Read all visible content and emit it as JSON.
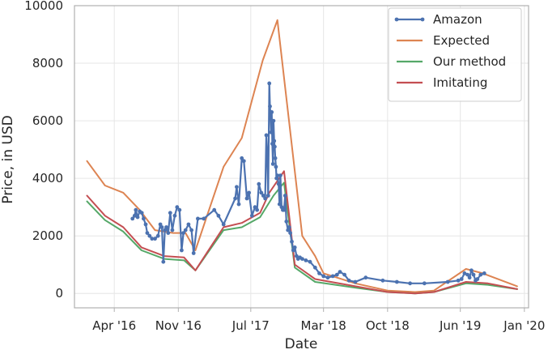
{
  "chart_data": {
    "type": "line",
    "title": "",
    "xlabel": "Date",
    "ylabel": "Price, in USD",
    "x_tick_labels": [
      "Apr '16",
      "Nov '16",
      "Jul '17",
      "Mar '18",
      "Oct '18",
      "Jun '19",
      "Jan '20"
    ],
    "x_ticks": [
      "2016-04-01",
      "2016-11-01",
      "2017-07-01",
      "2018-03-01",
      "2018-10-01",
      "2019-06-01",
      "2020-01-01"
    ],
    "y_ticks": [
      0,
      2000,
      4000,
      6000,
      8000,
      10000
    ],
    "y_tick_labels": [
      "0",
      "2000",
      "4000",
      "6000",
      "8000",
      "10000"
    ],
    "xlim": [
      "2015-11-20",
      "2020-01-15"
    ],
    "ylim": [
      -500,
      10000
    ],
    "grid": true,
    "legend_position": "top-right",
    "series": [
      {
        "name": "Amazon",
        "color": "#4c72b0",
        "marker": "circle",
        "points": [
          [
            "2016-06-01",
            2600
          ],
          [
            "2016-06-08",
            2700
          ],
          [
            "2016-06-12",
            2900
          ],
          [
            "2016-06-18",
            2650
          ],
          [
            "2016-06-25",
            2850
          ],
          [
            "2016-07-02",
            2800
          ],
          [
            "2016-07-08",
            2600
          ],
          [
            "2016-07-15",
            2400
          ],
          [
            "2016-07-20",
            2100
          ],
          [
            "2016-07-28",
            2000
          ],
          [
            "2016-08-05",
            1900
          ],
          [
            "2016-08-15",
            1900
          ],
          [
            "2016-08-25",
            2000
          ],
          [
            "2016-09-02",
            2400
          ],
          [
            "2016-09-07",
            2300
          ],
          [
            "2016-09-12",
            1100
          ],
          [
            "2016-09-17",
            2200
          ],
          [
            "2016-09-22",
            2300
          ],
          [
            "2016-09-28",
            2100
          ],
          [
            "2016-10-05",
            2800
          ],
          [
            "2016-10-12",
            2200
          ],
          [
            "2016-10-20",
            2700
          ],
          [
            "2016-10-28",
            3000
          ],
          [
            "2016-11-05",
            2900
          ],
          [
            "2016-11-12",
            1500
          ],
          [
            "2016-11-18",
            2100
          ],
          [
            "2016-11-25",
            2200
          ],
          [
            "2016-12-05",
            2400
          ],
          [
            "2016-12-15",
            2200
          ],
          [
            "2016-12-22",
            1400
          ],
          [
            "2017-01-05",
            2600
          ],
          [
            "2017-01-25",
            2600
          ],
          [
            "2017-03-01",
            2900
          ],
          [
            "2017-03-15",
            2700
          ],
          [
            "2017-04-01",
            2400
          ],
          [
            "2017-05-10",
            3300
          ],
          [
            "2017-05-15",
            3700
          ],
          [
            "2017-05-22",
            3100
          ],
          [
            "2017-06-01",
            4700
          ],
          [
            "2017-06-08",
            4600
          ],
          [
            "2017-06-18",
            3300
          ],
          [
            "2017-06-25",
            3500
          ],
          [
            "2017-07-05",
            2700
          ],
          [
            "2017-07-15",
            3000
          ],
          [
            "2017-07-22",
            2900
          ],
          [
            "2017-07-28",
            3800
          ],
          [
            "2017-08-05",
            3500
          ],
          [
            "2017-08-12",
            3400
          ],
          [
            "2017-08-18",
            3300
          ],
          [
            "2017-08-22",
            5500
          ],
          [
            "2017-08-25",
            4800
          ],
          [
            "2017-08-28",
            3400
          ],
          [
            "2017-09-01",
            7300
          ],
          [
            "2017-09-03",
            6500
          ],
          [
            "2017-09-05",
            6200
          ],
          [
            "2017-09-07",
            5600
          ],
          [
            "2017-09-09",
            6300
          ],
          [
            "2017-09-11",
            5200
          ],
          [
            "2017-09-13",
            4500
          ],
          [
            "2017-09-15",
            6000
          ],
          [
            "2017-09-17",
            5300
          ],
          [
            "2017-09-19",
            5100
          ],
          [
            "2017-09-21",
            4700
          ],
          [
            "2017-09-23",
            4400
          ],
          [
            "2017-09-25",
            4000
          ],
          [
            "2017-09-28",
            4100
          ],
          [
            "2017-10-02",
            3800
          ],
          [
            "2017-10-05",
            3100
          ],
          [
            "2017-10-08",
            4100
          ],
          [
            "2017-10-12",
            3000
          ],
          [
            "2017-10-16",
            2900
          ],
          [
            "2017-10-20",
            2900
          ],
          [
            "2017-10-24",
            3400
          ],
          [
            "2017-10-28",
            2500
          ],
          [
            "2017-11-02",
            2200
          ],
          [
            "2017-11-06",
            2300
          ],
          [
            "2017-11-10",
            2100
          ],
          [
            "2017-11-15",
            1800
          ],
          [
            "2017-11-20",
            1500
          ],
          [
            "2017-11-25",
            1600
          ],
          [
            "2017-12-01",
            1300
          ],
          [
            "2017-12-06",
            1200
          ],
          [
            "2017-12-12",
            1250
          ],
          [
            "2017-12-20",
            1200
          ],
          [
            "2018-01-01",
            1150
          ],
          [
            "2018-01-15",
            1100
          ],
          [
            "2018-02-01",
            900
          ],
          [
            "2018-02-15",
            700
          ],
          [
            "2018-03-01",
            600
          ],
          [
            "2018-03-15",
            550
          ],
          [
            "2018-04-01",
            600
          ],
          [
            "2018-04-15",
            650
          ],
          [
            "2018-04-25",
            750
          ],
          [
            "2018-05-10",
            650
          ],
          [
            "2018-05-25",
            450
          ],
          [
            "2018-06-15",
            400
          ],
          [
            "2018-07-20",
            550
          ],
          [
            "2018-09-15",
            450
          ],
          [
            "2018-11-01",
            400
          ],
          [
            "2018-12-15",
            350
          ],
          [
            "2019-02-01",
            350
          ],
          [
            "2019-04-20",
            400
          ],
          [
            "2019-05-25",
            450
          ],
          [
            "2019-06-05",
            500
          ],
          [
            "2019-06-15",
            700
          ],
          [
            "2019-06-25",
            650
          ],
          [
            "2019-07-02",
            550
          ],
          [
            "2019-07-08",
            800
          ],
          [
            "2019-07-15",
            650
          ],
          [
            "2019-07-22",
            450
          ],
          [
            "2019-07-28",
            500
          ],
          [
            "2019-08-08",
            650
          ],
          [
            "2019-08-20",
            700
          ]
        ]
      },
      {
        "name": "Expected",
        "color": "#dd8452",
        "marker": "none",
        "points": [
          [
            "2016-01-01",
            4600
          ],
          [
            "2016-03-01",
            3750
          ],
          [
            "2016-05-01",
            3500
          ],
          [
            "2016-06-25",
            2900
          ],
          [
            "2016-08-15",
            2200
          ],
          [
            "2016-10-15",
            2100
          ],
          [
            "2016-11-25",
            2100
          ],
          [
            "2016-12-28",
            1500
          ],
          [
            "2017-04-01",
            4400
          ],
          [
            "2017-06-01",
            5400
          ],
          [
            "2017-08-10",
            8100
          ],
          [
            "2017-09-28",
            9500
          ],
          [
            "2017-12-20",
            2000
          ],
          [
            "2018-02-01",
            1300
          ],
          [
            "2018-03-01",
            700
          ],
          [
            "2018-06-15",
            350
          ],
          [
            "2018-10-01",
            100
          ],
          [
            "2019-01-01",
            50
          ],
          [
            "2019-03-05",
            100
          ],
          [
            "2019-06-20",
            850
          ],
          [
            "2019-08-15",
            700
          ],
          [
            "2019-12-08",
            250
          ]
        ]
      },
      {
        "name": "Our method",
        "color": "#55a868",
        "marker": "none",
        "points": [
          [
            "2016-01-01",
            3200
          ],
          [
            "2016-03-01",
            2550
          ],
          [
            "2016-05-01",
            2150
          ],
          [
            "2016-07-01",
            1500
          ],
          [
            "2016-09-15",
            1200
          ],
          [
            "2016-11-20",
            1150
          ],
          [
            "2016-12-28",
            800
          ],
          [
            "2017-04-01",
            2200
          ],
          [
            "2017-06-01",
            2300
          ],
          [
            "2017-08-01",
            2650
          ],
          [
            "2017-09-15",
            3400
          ],
          [
            "2017-10-20",
            3850
          ],
          [
            "2017-11-25",
            900
          ],
          [
            "2018-02-01",
            400
          ],
          [
            "2018-06-15",
            200
          ],
          [
            "2018-10-01",
            50
          ],
          [
            "2019-01-01",
            0
          ],
          [
            "2019-03-05",
            50
          ],
          [
            "2019-06-20",
            350
          ],
          [
            "2019-09-01",
            300
          ],
          [
            "2019-12-08",
            150
          ]
        ]
      },
      {
        "name": "Imitating",
        "color": "#c44e52",
        "marker": "none",
        "points": [
          [
            "2016-01-01",
            3400
          ],
          [
            "2016-03-01",
            2700
          ],
          [
            "2016-05-01",
            2300
          ],
          [
            "2016-07-01",
            1600
          ],
          [
            "2016-09-15",
            1300
          ],
          [
            "2016-11-20",
            1250
          ],
          [
            "2016-12-28",
            800
          ],
          [
            "2017-04-01",
            2300
          ],
          [
            "2017-06-01",
            2450
          ],
          [
            "2017-08-01",
            2800
          ],
          [
            "2017-09-01",
            3500
          ],
          [
            "2017-10-20",
            4250
          ],
          [
            "2017-11-25",
            1000
          ],
          [
            "2018-02-01",
            500
          ],
          [
            "2018-06-15",
            250
          ],
          [
            "2018-10-01",
            50
          ],
          [
            "2019-01-01",
            0
          ],
          [
            "2019-03-05",
            50
          ],
          [
            "2019-06-20",
            400
          ],
          [
            "2019-09-01",
            350
          ],
          [
            "2019-12-08",
            150
          ]
        ]
      }
    ]
  }
}
